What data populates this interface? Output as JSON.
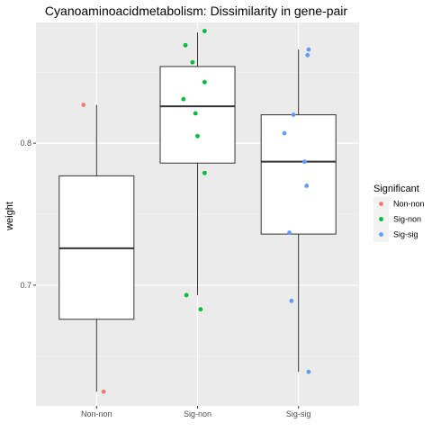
{
  "chart_data": {
    "type": "box",
    "title": "Cyanoaminoacidmetabolism: Dissimilarity in gene-pair",
    "xlabel": "",
    "ylabel": "weight",
    "categories": [
      "Non-non",
      "Sig-non",
      "Sig-sig"
    ],
    "ylim": [
      0.615,
      0.885
    ],
    "yticks": [
      0.7,
      0.8
    ],
    "ytick_labels": [
      "0.7",
      "0.8"
    ],
    "grid": true,
    "legend": {
      "title": "Significant",
      "position": "right",
      "entries": [
        {
          "label": "Non-non",
          "color": "#F8766D"
        },
        {
          "label": "Sig-non",
          "color": "#00BA38"
        },
        {
          "label": "Sig-sig",
          "color": "#619CFF"
        }
      ]
    },
    "boxes": [
      {
        "category": "Non-non",
        "min": 0.625,
        "q1": 0.676,
        "median": 0.726,
        "q3": 0.777,
        "max": 0.827
      },
      {
        "category": "Sig-non",
        "min": 0.693,
        "q1": 0.786,
        "median": 0.826,
        "q3": 0.854,
        "max": 0.878
      },
      {
        "category": "Sig-sig",
        "min": 0.639,
        "q1": 0.736,
        "median": 0.787,
        "q3": 0.82,
        "max": 0.866
      }
    ],
    "points": [
      {
        "group": "Non-non",
        "x": 0.87,
        "y": 0.827
      },
      {
        "group": "Non-non",
        "x": 1.07,
        "y": 0.625
      },
      {
        "group": "Sig-non",
        "x": 1.89,
        "y": 0.693
      },
      {
        "group": "Sig-non",
        "x": 1.86,
        "y": 0.831
      },
      {
        "group": "Sig-non",
        "x": 1.88,
        "y": 0.869
      },
      {
        "group": "Sig-non",
        "x": 1.95,
        "y": 0.857
      },
      {
        "group": "Sig-non",
        "x": 1.98,
        "y": 0.821
      },
      {
        "group": "Sig-non",
        "x": 2.0,
        "y": 0.805
      },
      {
        "group": "Sig-non",
        "x": 2.07,
        "y": 0.879
      },
      {
        "group": "Sig-non",
        "x": 2.07,
        "y": 0.843
      },
      {
        "group": "Sig-non",
        "x": 2.07,
        "y": 0.779
      },
      {
        "group": "Sig-non",
        "x": 2.03,
        "y": 0.683
      },
      {
        "group": "Sig-sig",
        "x": 2.86,
        "y": 0.807
      },
      {
        "group": "Sig-sig",
        "x": 2.95,
        "y": 0.82
      },
      {
        "group": "Sig-sig",
        "x": 3.1,
        "y": 0.866
      },
      {
        "group": "Sig-sig",
        "x": 3.09,
        "y": 0.862
      },
      {
        "group": "Sig-sig",
        "x": 3.06,
        "y": 0.787
      },
      {
        "group": "Sig-sig",
        "x": 3.08,
        "y": 0.77
      },
      {
        "group": "Sig-sig",
        "x": 2.91,
        "y": 0.737
      },
      {
        "group": "Sig-sig",
        "x": 2.93,
        "y": 0.689
      },
      {
        "group": "Sig-sig",
        "x": 3.1,
        "y": 0.639
      }
    ],
    "colors": {
      "panel_background": "#EBEBEB",
      "grid_major": "#FFFFFF",
      "box_fill": "#FFFFFF",
      "box_stroke": "#333333"
    }
  }
}
